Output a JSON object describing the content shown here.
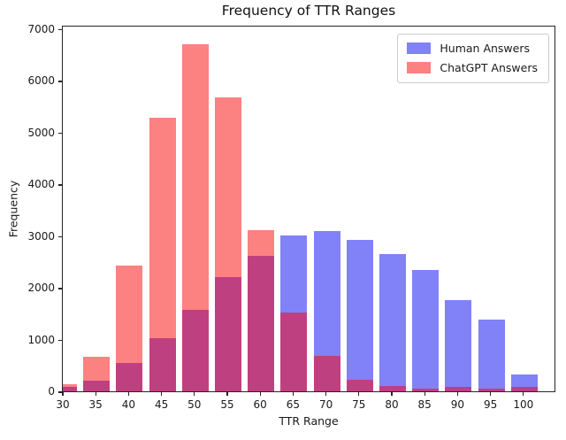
{
  "figure": {
    "title": "Frequency of TTR Ranges",
    "xlabel": "TTR Range",
    "ylabel": "Frequency"
  },
  "legend": {
    "items": [
      {
        "label": "Human Answers",
        "color": "#8181f8"
      },
      {
        "label": "ChatGPT Answers",
        "color": "#fc8181"
      }
    ]
  },
  "chart_data": {
    "type": "bar",
    "subtype": "overlaid-histogram",
    "title": "Frequency of TTR Ranges",
    "xlabel": "TTR Range",
    "ylabel": "Frequency",
    "categories": [
      30,
      35,
      40,
      45,
      50,
      55,
      60,
      65,
      70,
      75,
      80,
      85,
      90,
      95,
      100
    ],
    "xtick_labels": [
      "30",
      "35",
      "40",
      "45",
      "50",
      "55",
      "60",
      "65",
      "70",
      "75",
      "80",
      "85",
      "90",
      "95",
      "100"
    ],
    "series": [
      {
        "name": "Human Answers",
        "color": "#8181f8",
        "values": [
          80,
          210,
          540,
          1030,
          1580,
          2210,
          2610,
          3010,
          3090,
          2930,
          2650,
          2340,
          1760,
          1390,
          330
        ]
      },
      {
        "name": "ChatGPT Answers",
        "color": "#fc8181",
        "values": [
          130,
          660,
          2430,
          5290,
          6700,
          5680,
          3110,
          1520,
          680,
          230,
          100,
          60,
          80,
          60,
          80
        ]
      }
    ],
    "overlap_color": "#bf4080",
    "ylim": [
      0,
      7000
    ],
    "yticks": [
      0,
      1000,
      2000,
      3000,
      4000,
      5000,
      6000,
      7000
    ],
    "ytick_labels": [
      "0",
      "1000",
      "2000",
      "3000",
      "4000",
      "5000",
      "6000",
      "7000"
    ],
    "grid": false,
    "legend_position": "upper right",
    "notes": "Semi-transparent overlaid histograms; overlap of blue and red renders dark magenta; bars centered on x ticks; first bar half-clipped at left spine"
  }
}
